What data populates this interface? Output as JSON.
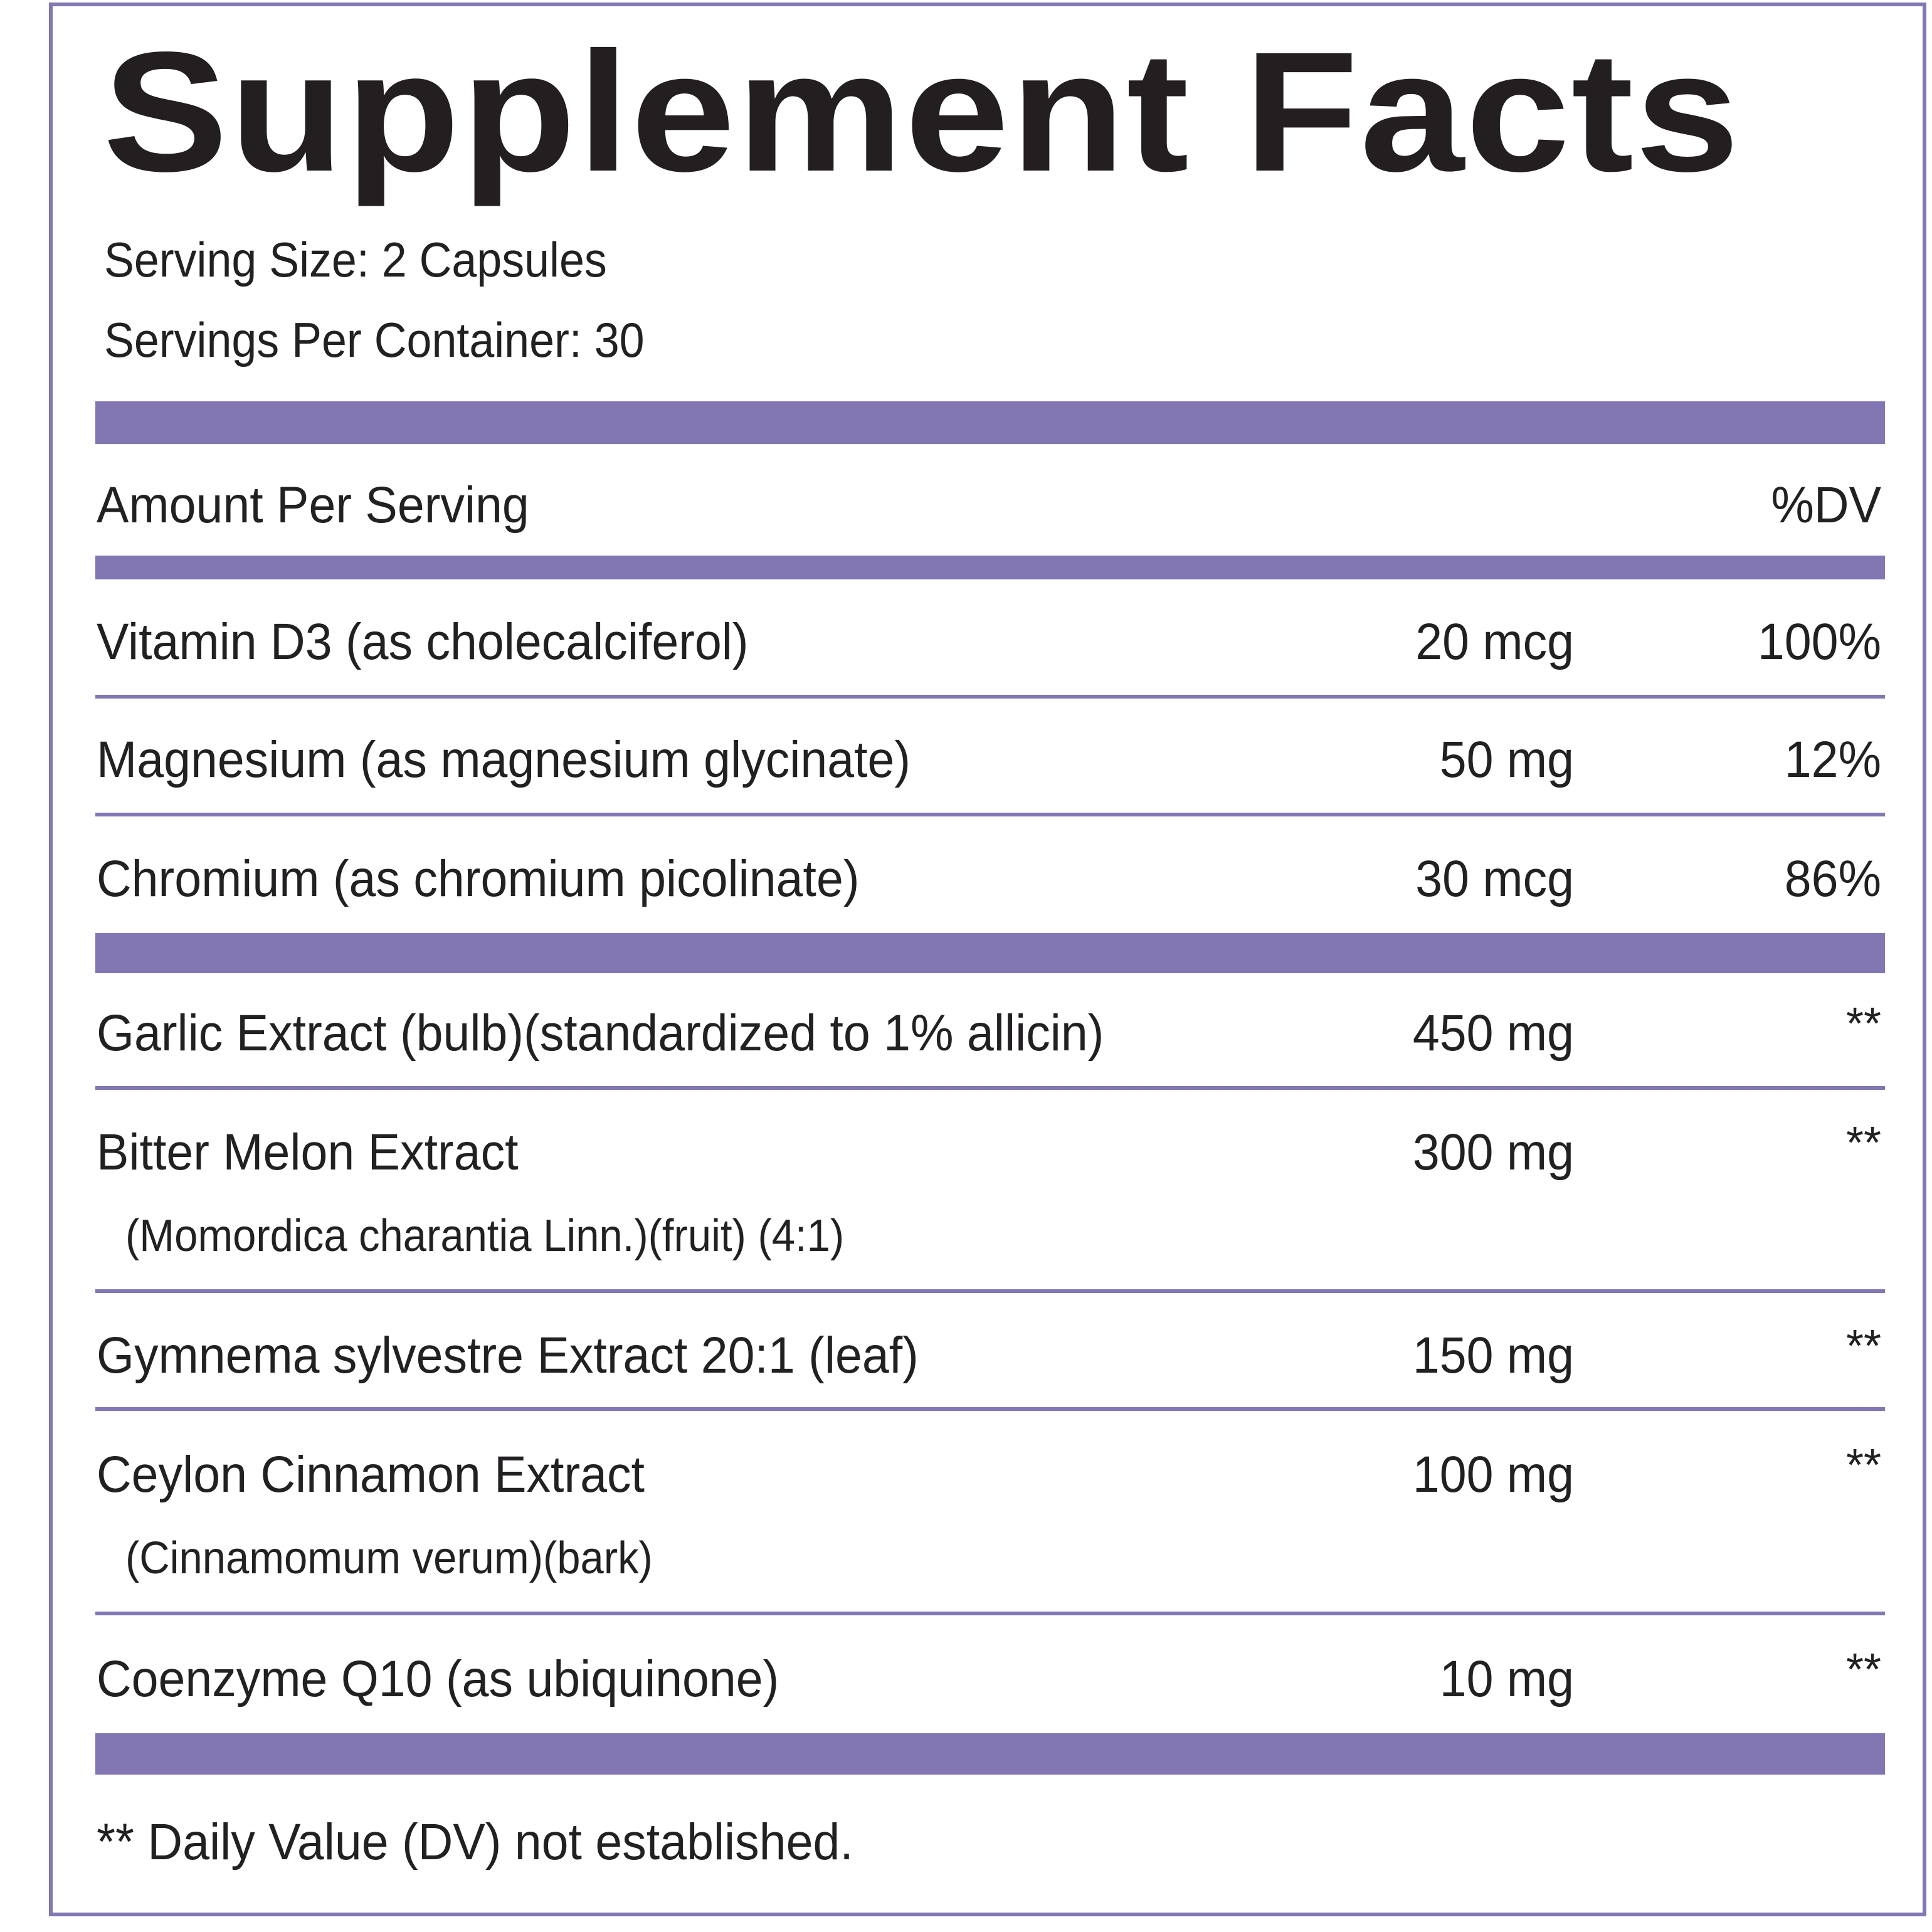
{
  "title": "Supplement Facts",
  "serving_size": "Serving Size: 2 Capsules",
  "servings_per_container": "Servings Per Container: 30",
  "header": {
    "amount_label": "Amount Per Serving",
    "dv_label": "%DV"
  },
  "vitamins": [
    {
      "name": "Vitamin D3 (as cholecalciferol)",
      "amount": "20 mcg",
      "dv": "100%"
    },
    {
      "name": "Magnesium (as magnesium glycinate)",
      "amount": "50 mg",
      "dv": "12%"
    },
    {
      "name": "Chromium (as chromium picolinate)",
      "amount": "30 mcg",
      "dv": "86%"
    }
  ],
  "blend": [
    {
      "name": "Garlic Extract (bulb)(standardized to 1% allicin)",
      "sub": "",
      "amount": "450 mg",
      "dv": "**"
    },
    {
      "name": "Bitter Melon Extract",
      "sub": "(Momordica charantia Linn.)(fruit) (4:1)",
      "amount": "300 mg",
      "dv": "**"
    },
    {
      "name": "Gymnema sylvestre Extract 20:1 (leaf)",
      "sub": "",
      "amount": "150 mg",
      "dv": "**"
    },
    {
      "name": "Ceylon Cinnamon Extract",
      "sub": "(Cinnamomum verum)(bark)",
      "amount": "100 mg",
      "dv": "**"
    },
    {
      "name": "Coenzyme Q10 (as ubiquinone)",
      "sub": "",
      "amount": "10 mg",
      "dv": "**"
    }
  ],
  "footnote": "** Daily Value (DV) not established.",
  "colors": {
    "accent": "#8277b2",
    "text": "#222022"
  }
}
